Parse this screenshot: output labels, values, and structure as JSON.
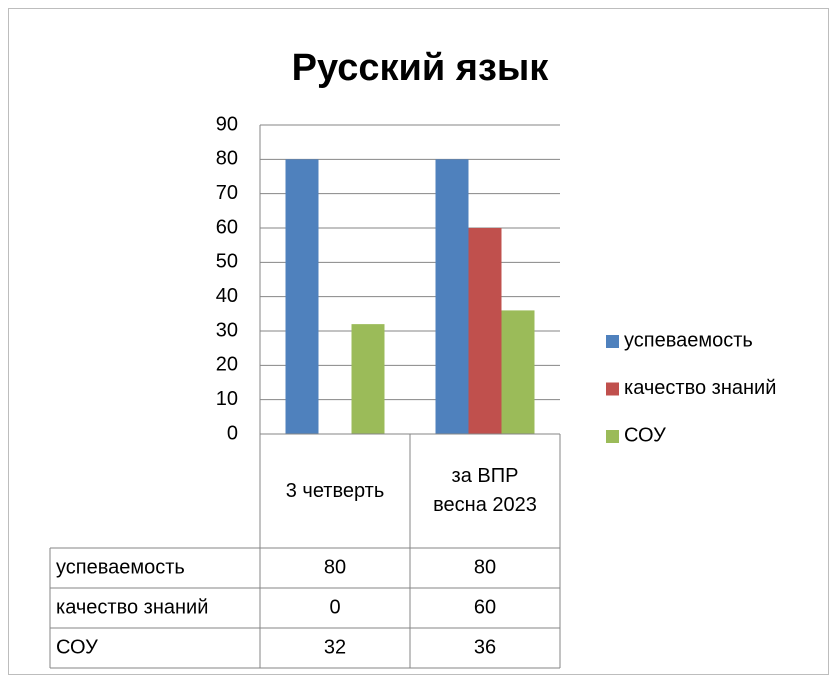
{
  "chart_data": {
    "type": "bar",
    "title": "Русский язык",
    "categories": [
      "3 четверть",
      "за ВПР весна 2023"
    ],
    "series": [
      {
        "name": "успеваемость",
        "color": "#4f81bd",
        "values": [
          80,
          80
        ]
      },
      {
        "name": "качество знаний",
        "color": "#c0504d",
        "values": [
          0,
          60
        ]
      },
      {
        "name": "СОУ",
        "color": "#9bbb59",
        "values": [
          32,
          36
        ]
      }
    ],
    "ylim": [
      0,
      90
    ],
    "yticks": [
      0,
      10,
      20,
      30,
      40,
      50,
      60,
      70,
      80,
      90
    ],
    "grid": true,
    "legend": "right"
  }
}
